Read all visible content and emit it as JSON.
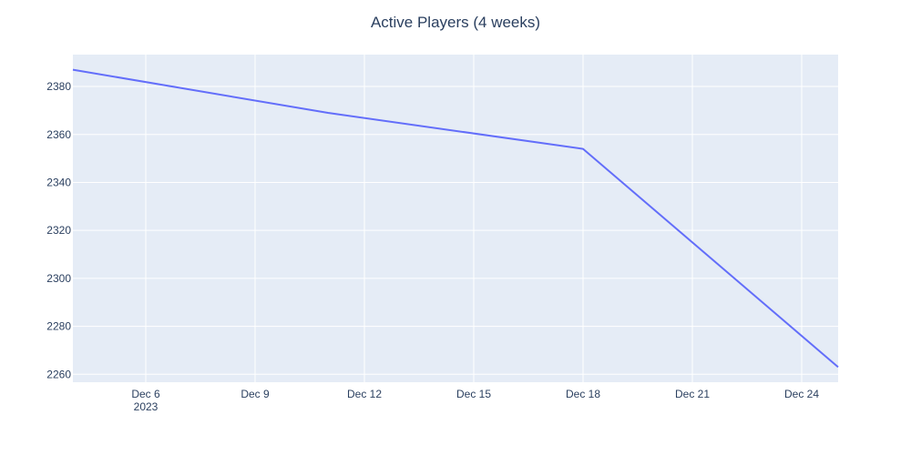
{
  "chart_data": {
    "type": "line",
    "title": "Active Players (4 weeks)",
    "xlabel": "",
    "ylabel": "",
    "x": [
      "2023-12-04",
      "2023-12-11",
      "2023-12-18",
      "2023-12-25"
    ],
    "series": [
      {
        "values": [
          2387,
          2369,
          2354,
          2263
        ]
      }
    ],
    "xlim": [
      "2023-12-04",
      "2023-12-25"
    ],
    "ylim": [
      2256.7,
      2393.3
    ],
    "x_ticks": [
      {
        "date": "2023-12-06",
        "label": "Dec 6",
        "sublabel": "2023"
      },
      {
        "date": "2023-12-09",
        "label": "Dec 9"
      },
      {
        "date": "2023-12-12",
        "label": "Dec 12"
      },
      {
        "date": "2023-12-15",
        "label": "Dec 15"
      },
      {
        "date": "2023-12-18",
        "label": "Dec 18"
      },
      {
        "date": "2023-12-21",
        "label": "Dec 21"
      },
      {
        "date": "2023-12-24",
        "label": "Dec 24"
      }
    ],
    "y_ticks": [
      2260,
      2280,
      2300,
      2320,
      2340,
      2360,
      2380
    ],
    "grid": true,
    "colors": {
      "line": "#636efa",
      "plot_bg": "#e5ecf6",
      "grid": "#ffffff",
      "text": "#2a3f5f"
    }
  }
}
